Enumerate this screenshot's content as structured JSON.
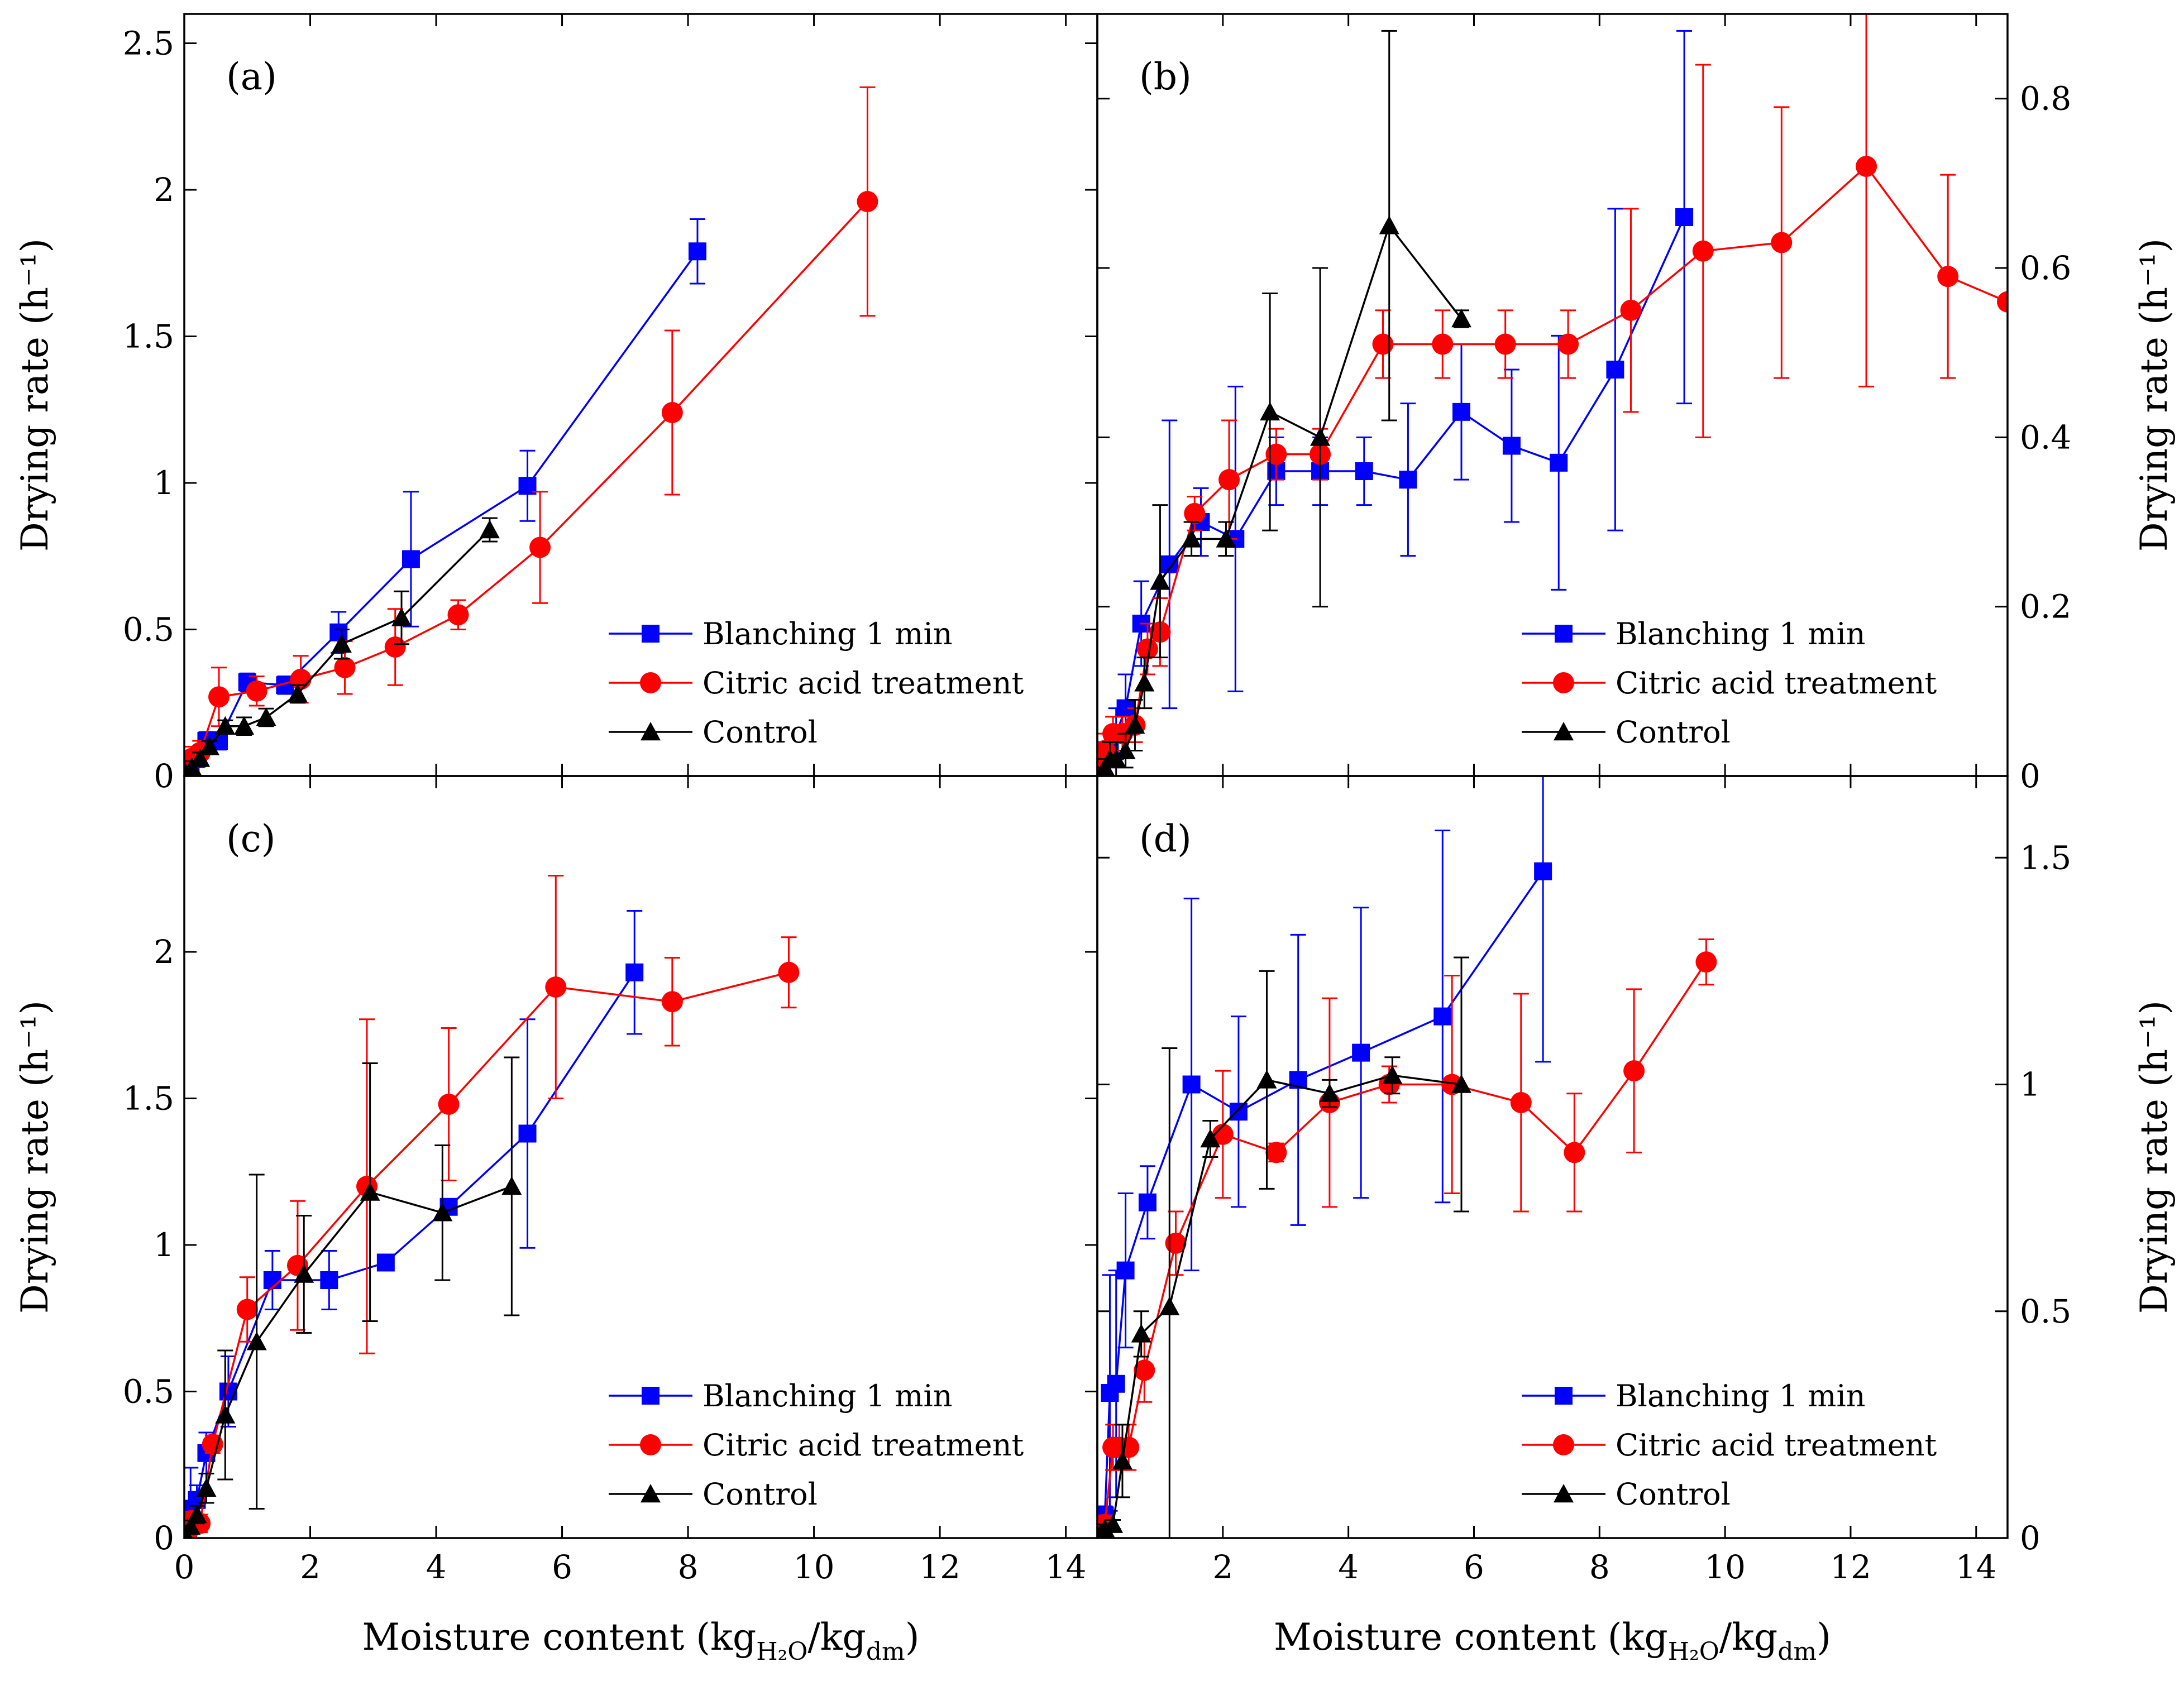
{
  "figure": {
    "x_axis_title": "Moisture content (kg",
    "x_axis_sub1": "H₂O",
    "x_axis_mid": "/kg",
    "x_axis_sub2": "dm",
    "x_axis_end": ")",
    "y_axis_title": "Drying rate (h⁻¹)",
    "legend_entries": [
      "Blanching 1 min",
      "Citric acid treatment",
      "Control"
    ],
    "colors": {
      "Blanching 1 min": "#0000ff",
      "Citric acid treatment": "#ff0000",
      "Control": "#000000"
    },
    "markers": {
      "Blanching 1 min": "square",
      "Citric acid treatment": "circle",
      "Control": "triangle"
    }
  },
  "chart_data": [
    {
      "panel": "(a)",
      "type": "line",
      "xlim": [
        0,
        14.5
      ],
      "ylim": [
        0,
        2.6
      ],
      "xticks": [
        0,
        2,
        4,
        6,
        8,
        10,
        12,
        14
      ],
      "yticks": [
        0,
        0.5,
        1,
        1.5,
        2,
        2.5
      ],
      "ytick_labels": [
        "0",
        "0.5",
        "1",
        "1.5",
        "2",
        "2.5"
      ],
      "show_xtick_labels": false,
      "y_axis_side": "left",
      "series": [
        {
          "name": "Blanching 1 min",
          "x": [
            0.02,
            0.1,
            0.2,
            0.35,
            0.55,
            1.0,
            1.6,
            2.45,
            3.6,
            5.45,
            8.15
          ],
          "y": [
            0.01,
            0.03,
            0.06,
            0.12,
            0.12,
            0.32,
            0.31,
            0.49,
            0.74,
            0.99,
            1.79
          ],
          "err": [
            0.01,
            0.02,
            0.03,
            0.03,
            0.03,
            0.03,
            0.03,
            0.07,
            0.23,
            0.12,
            0.11
          ]
        },
        {
          "name": "Citric acid treatment",
          "x": [
            0.05,
            0.12,
            0.25,
            0.55,
            1.15,
            1.85,
            2.55,
            3.35,
            4.35,
            5.65,
            7.75,
            10.85
          ],
          "y": [
            0.02,
            0.06,
            0.08,
            0.27,
            0.29,
            0.33,
            0.37,
            0.44,
            0.55,
            0.78,
            1.24,
            1.96
          ],
          "err": [
            0.02,
            0.04,
            0.04,
            0.1,
            0.05,
            0.08,
            0.09,
            0.13,
            0.05,
            0.19,
            0.28,
            0.39
          ]
        },
        {
          "name": "Control",
          "x": [
            0.02,
            0.12,
            0.25,
            0.4,
            0.65,
            0.95,
            1.3,
            1.8,
            2.5,
            3.45,
            4.85
          ],
          "y": [
            0.01,
            0.03,
            0.06,
            0.1,
            0.17,
            0.17,
            0.2,
            0.28,
            0.45,
            0.54,
            0.84
          ],
          "err": [
            0.01,
            0.02,
            0.02,
            0.02,
            0.02,
            0.03,
            0.03,
            0.03,
            0.05,
            0.09,
            0.04
          ]
        }
      ]
    },
    {
      "panel": "(b)",
      "type": "line",
      "xlim": [
        0,
        14.5
      ],
      "ylim": [
        0,
        0.9
      ],
      "xticks": [
        0,
        2,
        4,
        6,
        8,
        10,
        12,
        14
      ],
      "yticks": [
        0,
        0.2,
        0.4,
        0.6,
        0.8
      ],
      "ytick_labels": [
        "0",
        "0.2",
        "0.4",
        "0.6",
        "0.8"
      ],
      "show_xtick_labels": false,
      "y_axis_side": "right",
      "series": [
        {
          "name": "Blanching 1 min",
          "x": [
            0.05,
            0.12,
            0.2,
            0.3,
            0.45,
            0.7,
            1.15,
            1.65,
            2.2,
            2.85,
            3.55,
            4.25,
            4.95,
            5.8,
            6.6,
            7.35,
            8.25,
            9.35
          ],
          "y": [
            0.0,
            0.02,
            0.03,
            0.05,
            0.08,
            0.18,
            0.25,
            0.3,
            0.28,
            0.36,
            0.36,
            0.36,
            0.35,
            0.43,
            0.39,
            0.37,
            0.48,
            0.66
          ],
          "err": [
            0.01,
            0.02,
            0.02,
            0.03,
            0.04,
            0.05,
            0.17,
            0.04,
            0.18,
            0.04,
            0.04,
            0.04,
            0.09,
            0.08,
            0.09,
            0.15,
            0.19,
            0.22
          ]
        },
        {
          "name": "Citric acid treatment",
          "x": [
            0.05,
            0.12,
            0.25,
            0.4,
            0.6,
            0.8,
            1.0,
            1.55,
            2.1,
            2.85,
            3.55,
            4.55,
            5.5,
            6.5,
            7.5,
            8.5,
            9.65,
            10.9,
            12.25,
            13.55,
            14.5
          ],
          "y": [
            0.01,
            0.03,
            0.05,
            0.05,
            0.06,
            0.15,
            0.17,
            0.31,
            0.35,
            0.38,
            0.38,
            0.51,
            0.51,
            0.51,
            0.51,
            0.55,
            0.62,
            0.63,
            0.72,
            0.59,
            0.56
          ],
          "err": [
            0.01,
            0.02,
            0.02,
            0.02,
            0.02,
            0.03,
            0.04,
            0.02,
            0.07,
            0.03,
            0.03,
            0.04,
            0.04,
            0.04,
            0.04,
            0.12,
            0.22,
            0.16,
            0.26,
            0.12,
            0.0
          ]
        },
        {
          "name": "Control",
          "x": [
            0.05,
            0.12,
            0.2,
            0.3,
            0.45,
            0.6,
            0.75,
            1.0,
            1.5,
            2.05,
            2.75,
            3.55,
            4.65,
            5.8
          ],
          "y": [
            0.0,
            0.01,
            0.02,
            0.02,
            0.03,
            0.06,
            0.11,
            0.23,
            0.28,
            0.28,
            0.43,
            0.4,
            0.65,
            0.54
          ],
          "err": [
            0.01,
            0.01,
            0.02,
            0.02,
            0.02,
            0.03,
            0.03,
            0.09,
            0.02,
            0.02,
            0.14,
            0.2,
            0.23,
            0.01
          ]
        }
      ]
    },
    {
      "panel": "(c)",
      "type": "line",
      "xlim": [
        0,
        14.5
      ],
      "ylim": [
        0,
        2.6
      ],
      "xticks": [
        0,
        2,
        4,
        6,
        8,
        10,
        12,
        14
      ],
      "xtick_labels": [
        "0",
        "2",
        "4",
        "6",
        "8",
        "10",
        "12",
        "14"
      ],
      "yticks": [
        0,
        0.5,
        1,
        1.5,
        2
      ],
      "ytick_labels": [
        "0",
        "0.5",
        "1",
        "1.5",
        "2"
      ],
      "show_xtick_labels": true,
      "y_axis_side": "left",
      "series": [
        {
          "name": "Blanching 1 min",
          "x": [
            0.02,
            0.1,
            0.2,
            0.35,
            0.7,
            1.4,
            2.3,
            3.2,
            4.2,
            5.45,
            7.15
          ],
          "y": [
            0.01,
            0.1,
            0.13,
            0.29,
            0.5,
            0.88,
            0.88,
            0.94,
            1.13,
            1.38,
            1.93
          ],
          "err": [
            0.01,
            0.14,
            0.05,
            0.07,
            0.12,
            0.1,
            0.1,
            0.0,
            0.02,
            0.39,
            0.21
          ]
        },
        {
          "name": "Citric acid treatment",
          "x": [
            0.05,
            0.12,
            0.25,
            0.45,
            1.0,
            1.8,
            2.9,
            4.2,
            5.9,
            7.75,
            9.6
          ],
          "y": [
            0.02,
            0.06,
            0.05,
            0.32,
            0.78,
            0.93,
            1.2,
            1.48,
            1.88,
            1.83,
            1.93
          ],
          "err": [
            0.02,
            0.03,
            0.03,
            0.03,
            0.11,
            0.22,
            0.57,
            0.26,
            0.38,
            0.15,
            0.12
          ]
        },
        {
          "name": "Control",
          "x": [
            0.02,
            0.1,
            0.2,
            0.35,
            0.65,
            1.15,
            1.9,
            2.95,
            4.1,
            5.2
          ],
          "y": [
            0.01,
            0.04,
            0.08,
            0.17,
            0.42,
            0.67,
            0.9,
            1.18,
            1.11,
            1.2
          ],
          "err": [
            0.01,
            0.02,
            0.03,
            0.05,
            0.22,
            0.57,
            0.2,
            0.44,
            0.23,
            0.44
          ]
        }
      ]
    },
    {
      "panel": "(d)",
      "type": "line",
      "xlim": [
        0,
        14.5
      ],
      "ylim": [
        0,
        1.68
      ],
      "xticks": [
        2,
        4,
        6,
        8,
        10,
        12,
        14
      ],
      "xtick_labels": [
        "2",
        "4",
        "6",
        "8",
        "10",
        "12",
        "14"
      ],
      "yticks": [
        0,
        0.5,
        1,
        1.5
      ],
      "ytick_labels": [
        "0",
        "0.5",
        "1",
        "1.5"
      ],
      "show_xtick_labels": true,
      "y_axis_side": "right",
      "series": [
        {
          "name": "Blanching 1 min",
          "x": [
            0.05,
            0.12,
            0.2,
            0.3,
            0.45,
            0.8,
            1.5,
            2.25,
            3.2,
            4.2,
            5.5,
            7.1
          ],
          "y": [
            0.0,
            0.05,
            0.32,
            0.34,
            0.59,
            0.74,
            1.0,
            0.94,
            1.01,
            1.07,
            1.15,
            1.47
          ],
          "err": [
            0.01,
            0.02,
            0.26,
            0.25,
            0.17,
            0.08,
            0.41,
            0.21,
            0.32,
            0.32,
            0.41,
            0.42
          ]
        },
        {
          "name": "Citric acid treatment",
          "x": [
            0.05,
            0.12,
            0.25,
            0.35,
            0.5,
            0.75,
            1.25,
            2.0,
            2.85,
            3.7,
            4.65,
            5.65,
            6.75,
            7.6,
            8.55,
            9.7
          ],
          "y": [
            0.01,
            0.03,
            0.2,
            0.2,
            0.2,
            0.37,
            0.65,
            0.89,
            0.85,
            0.96,
            1.0,
            1.0,
            0.96,
            0.85,
            1.03,
            1.27
          ],
          "err": [
            0.01,
            0.02,
            0.05,
            0.05,
            0.05,
            0.07,
            0.07,
            0.14,
            0.02,
            0.23,
            0.04,
            0.24,
            0.24,
            0.13,
            0.18,
            0.05
          ]
        },
        {
          "name": "Control",
          "x": [
            0.05,
            0.12,
            0.25,
            0.4,
            0.7,
            1.15,
            1.8,
            2.7,
            3.7,
            4.7,
            5.8
          ],
          "y": [
            0.01,
            0.02,
            0.03,
            0.17,
            0.45,
            0.51,
            0.88,
            1.01,
            0.98,
            1.02,
            1.0
          ],
          "err": [
            0.01,
            0.01,
            0.01,
            0.08,
            0.05,
            0.57,
            0.04,
            0.24,
            0.03,
            0.04,
            0.28
          ]
        }
      ]
    }
  ]
}
